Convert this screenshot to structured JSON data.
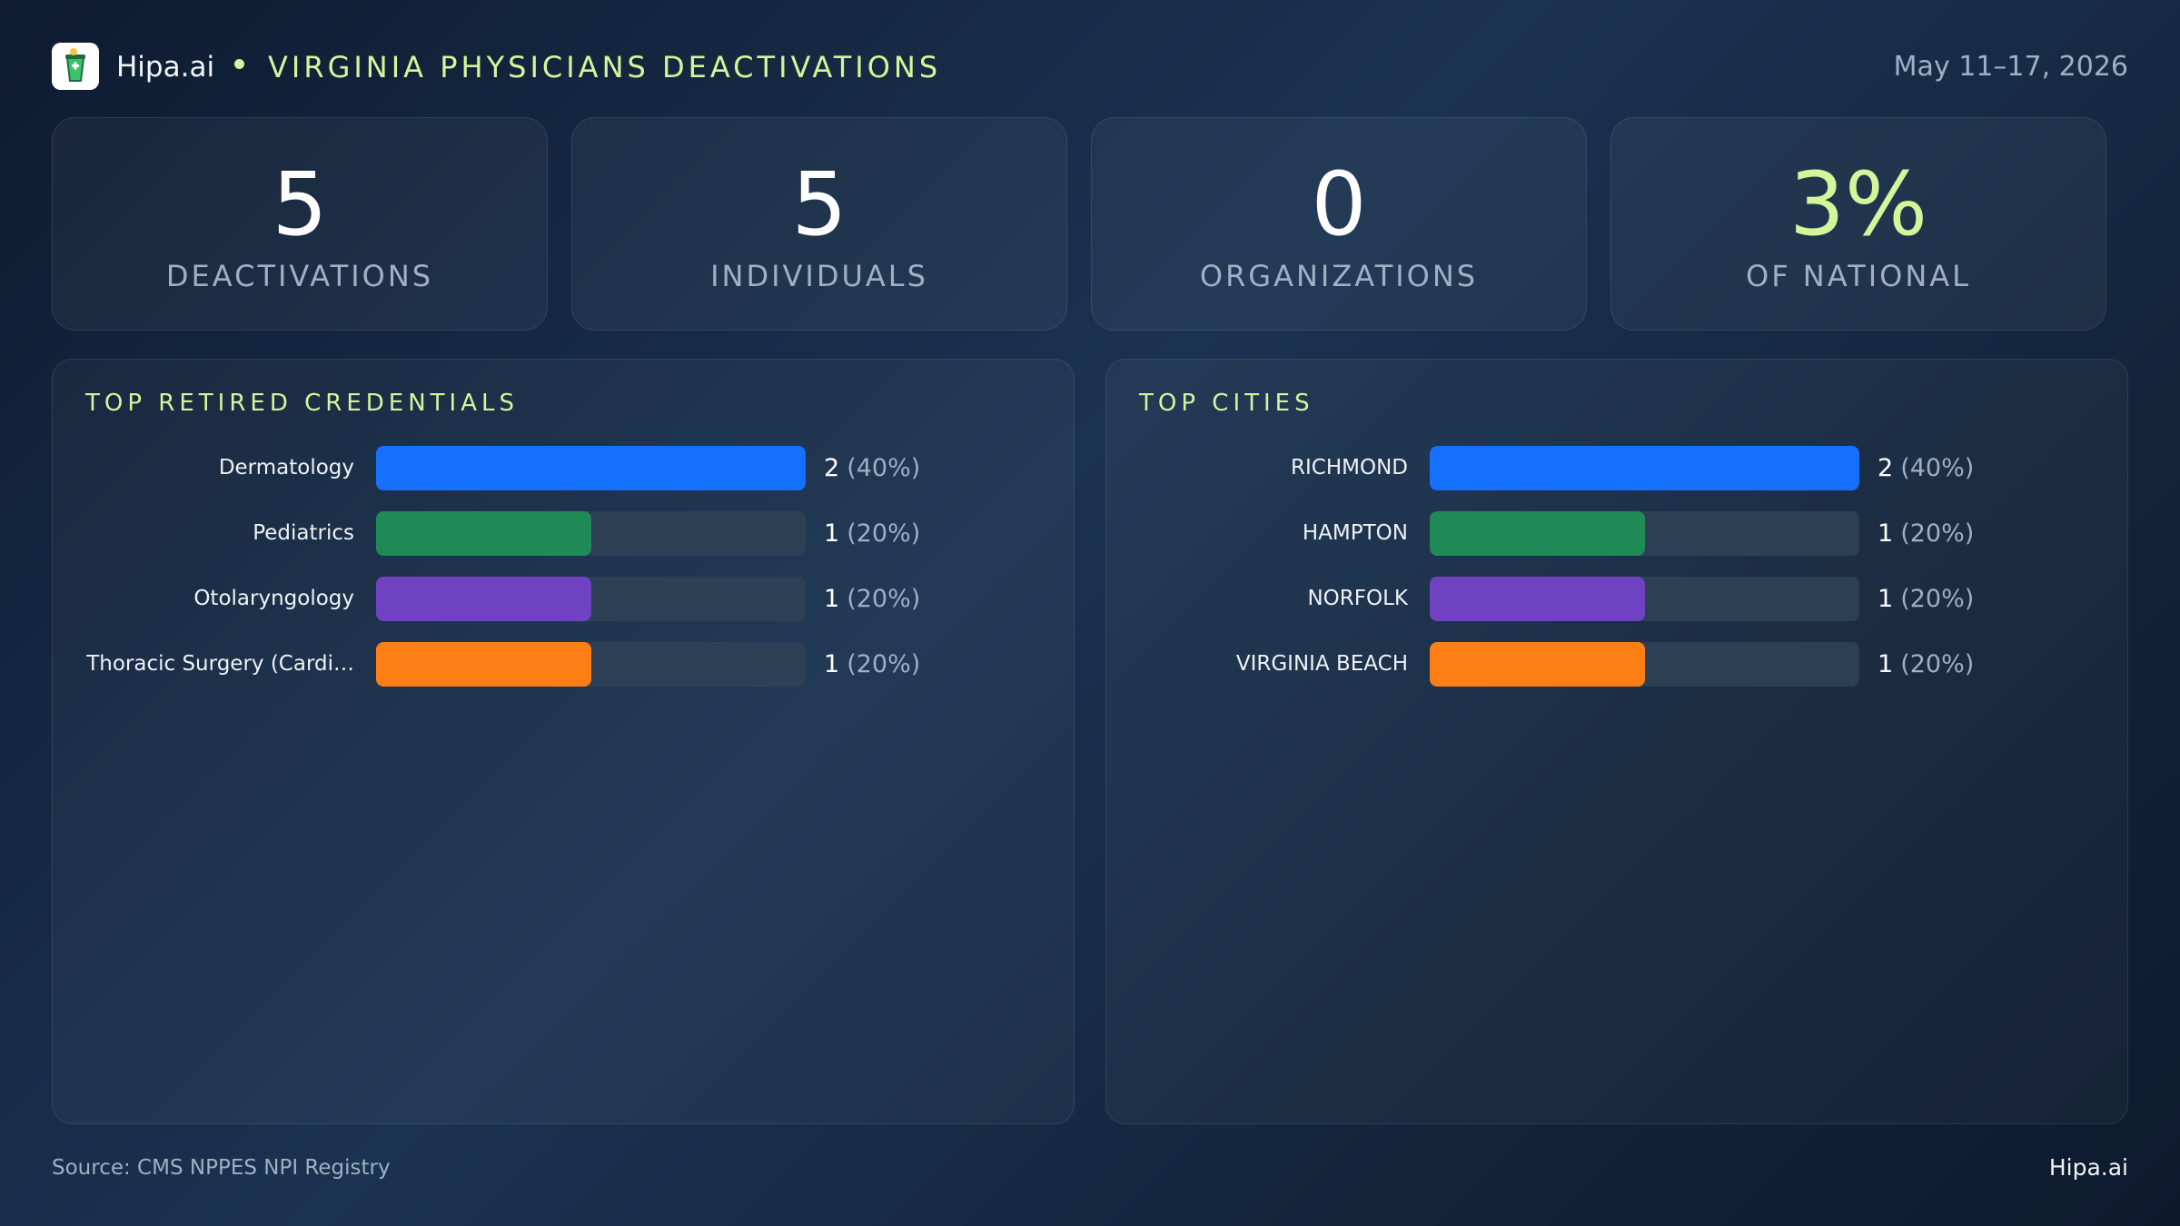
{
  "header": {
    "brand": "Hipa.ai",
    "title": "VIRGINIA PHYSICIANS DEACTIVATIONS",
    "date": "May 11–17, 2026"
  },
  "stats": [
    {
      "value": "5",
      "label": "DEACTIVATIONS"
    },
    {
      "value": "5",
      "label": "INDIVIDUALS"
    },
    {
      "value": "0",
      "label": "ORGANIZATIONS"
    },
    {
      "value": "3%",
      "label": "OF NATIONAL",
      "accent": true
    }
  ],
  "panels": [
    {
      "title": "TOP RETIRED CREDENTIALS",
      "items": [
        {
          "label": "Dermatology",
          "value": 2,
          "share": {
            "value": 40,
            "label": "(40%)"
          },
          "color": "#1570ff"
        },
        {
          "label": "Pediatrics",
          "value": 1,
          "share": {
            "value": 20,
            "label": "(20%)"
          },
          "color": "#1f8a55"
        },
        {
          "label": "Otolaryngology",
          "value": 1,
          "share": {
            "value": 20,
            "label": "(20%)"
          },
          "color": "#6f42c1"
        },
        {
          "label": "Thoracic Surgery (Cardi…",
          "value": 1,
          "share": {
            "value": 20,
            "label": "(20%)"
          },
          "color": "#fd7e14"
        }
      ]
    },
    {
      "title": "TOP CITIES",
      "items": [
        {
          "label": "RICHMOND",
          "value": 2,
          "share": {
            "value": 40,
            "label": "(40%)"
          },
          "color": "#1570ff"
        },
        {
          "label": "HAMPTON",
          "value": 1,
          "share": {
            "value": 20,
            "label": "(20%)"
          },
          "color": "#1f8a55"
        },
        {
          "label": "NORFOLK",
          "value": 1,
          "share": {
            "value": 20,
            "label": "(20%)"
          },
          "color": "#6f42c1"
        },
        {
          "label": "VIRGINIA BEACH",
          "value": 1,
          "share": {
            "value": 20,
            "label": "(20%)"
          },
          "color": "#fd7e14"
        }
      ]
    }
  ],
  "footer": {
    "source": "Source: CMS NPPES NPI Registry",
    "brand": "Hipa.ai"
  }
}
